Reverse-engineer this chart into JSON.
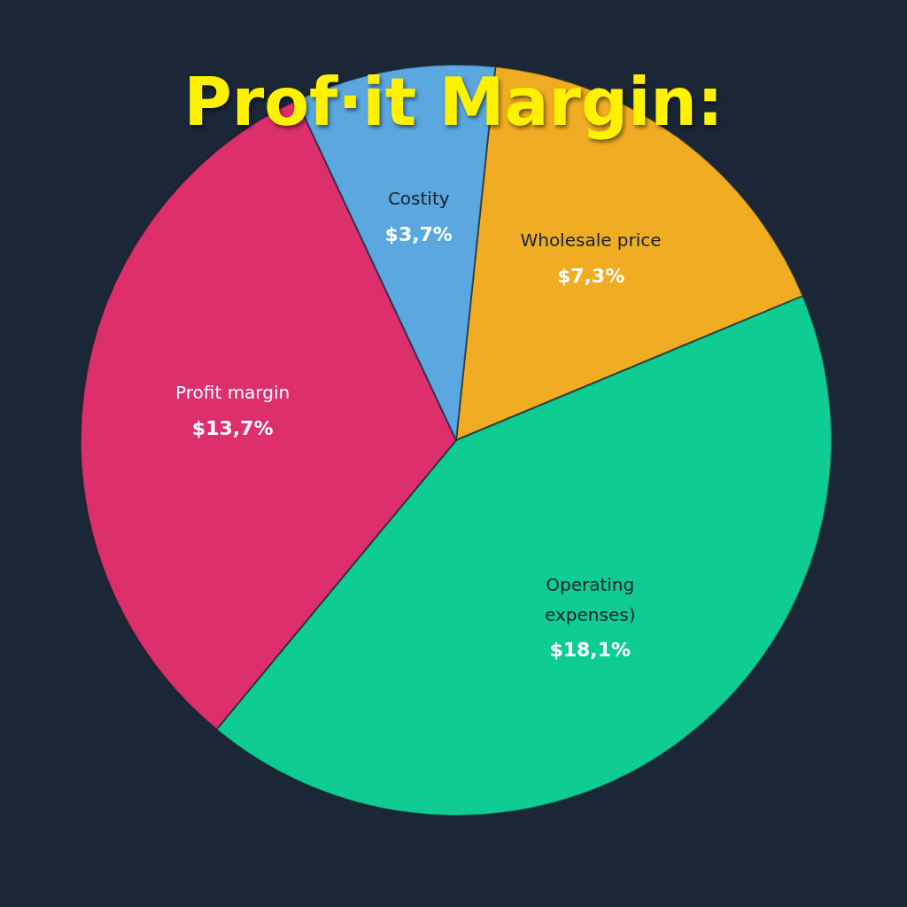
{
  "chart_data": {
    "type": "pie",
    "title": "Prof·it Margin:",
    "categories": [
      "Wholesale price",
      "Operating expenses)",
      "Profit margin",
      "Costity"
    ],
    "values": [
      7.3,
      18.1,
      13.7,
      3.7
    ],
    "value_labels": [
      "$7,3%",
      "$18,1%",
      "$13,7%",
      "$3,7%"
    ],
    "colors": [
      "#f0ac22",
      "#0fcc92",
      "#dc2f6c",
      "#5aa8df"
    ]
  }
}
